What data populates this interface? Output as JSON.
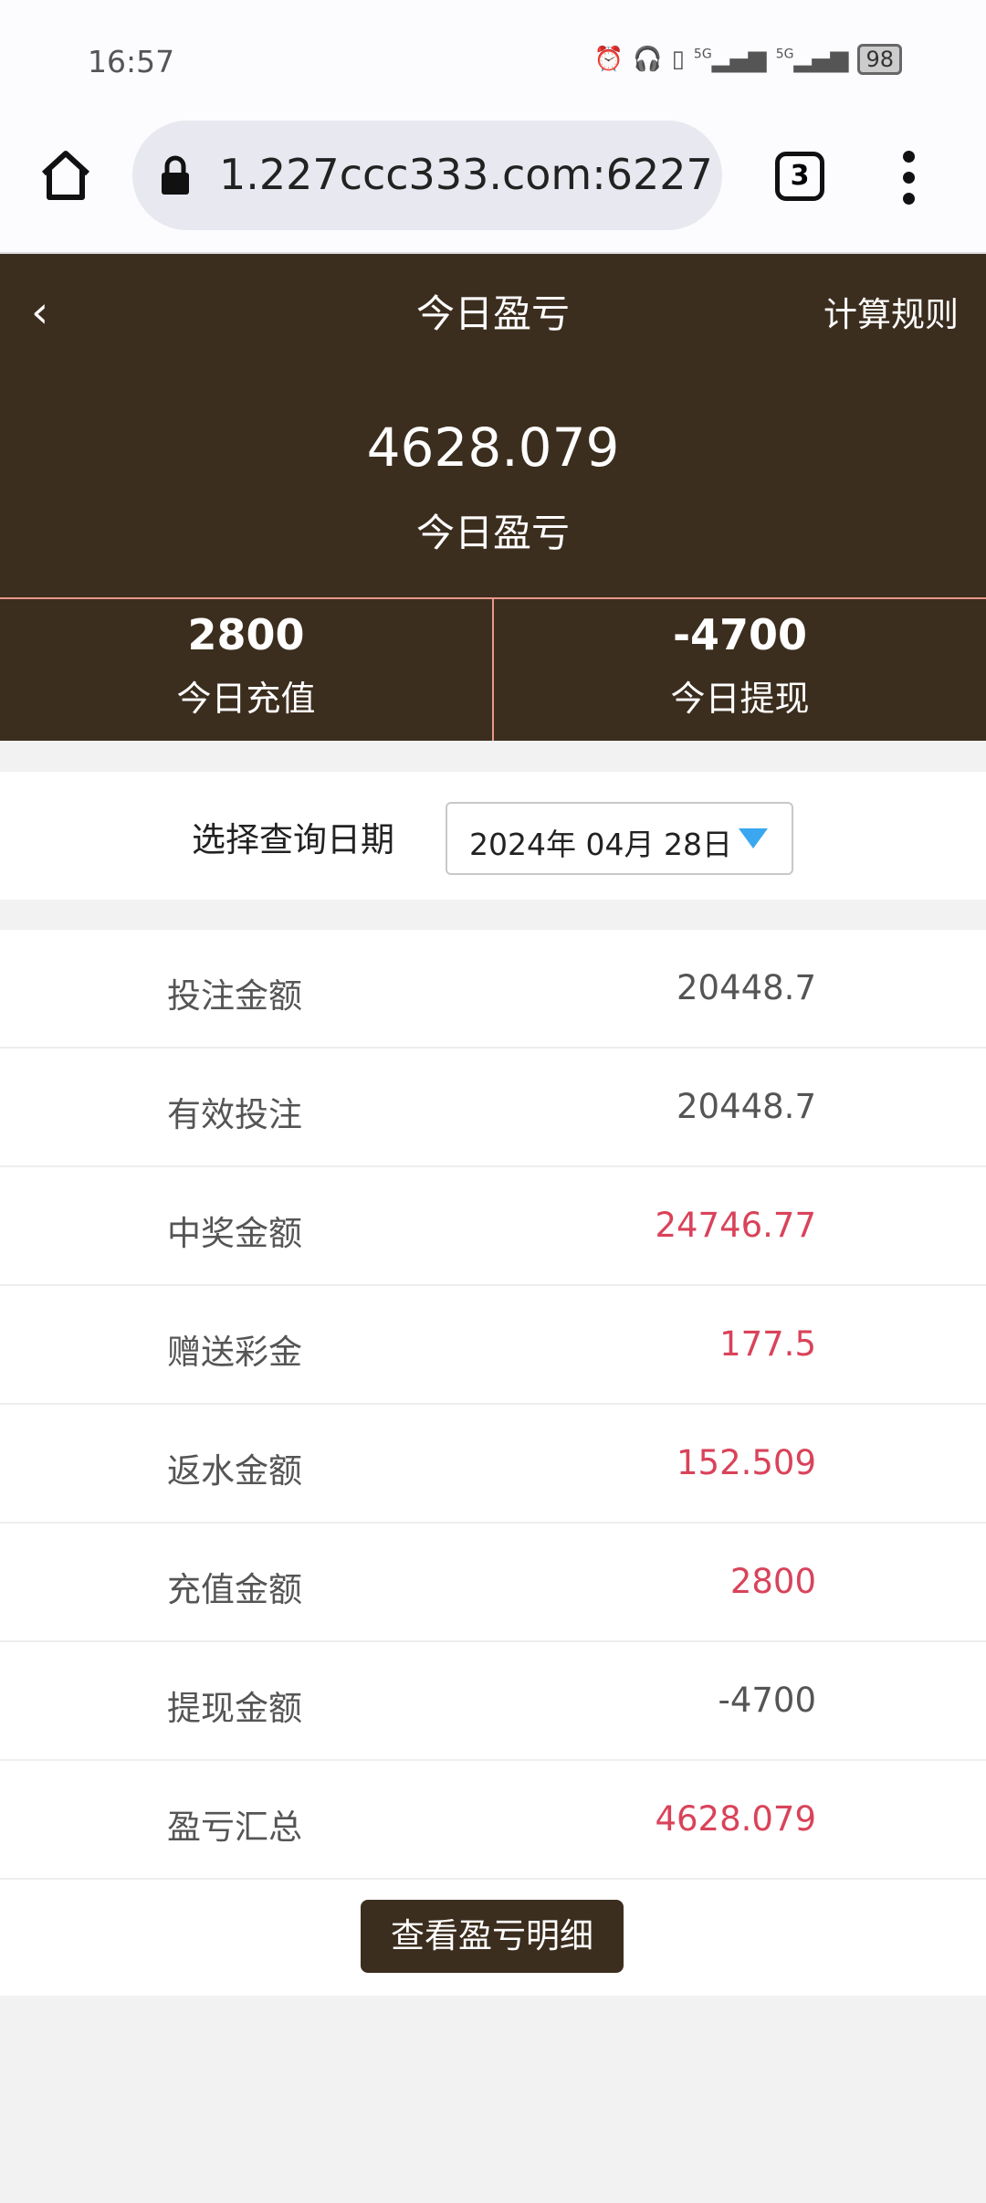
{
  "status_bar": {
    "time": "16:57",
    "battery": "98",
    "signal1": "5G",
    "signal2": "5G"
  },
  "browser": {
    "url": "1.227ccc333.com:6227",
    "tab_count": "3"
  },
  "header": {
    "back": "‹",
    "title": "今日盈亏",
    "rules": "计算规则",
    "profit_value": "4628.079",
    "profit_label": "今日盈亏"
  },
  "stats": [
    {
      "value": "2800",
      "label": "今日充值"
    },
    {
      "value": "-4700",
      "label": "今日提现"
    }
  ],
  "date_filter": {
    "label": "选择查询日期",
    "value": "2024年 04月 28日"
  },
  "rows": [
    {
      "label": "投注金额",
      "value": "20448.7",
      "highlight": false
    },
    {
      "label": "有效投注",
      "value": "20448.7",
      "highlight": false
    },
    {
      "label": "中奖金额",
      "value": "24746.77",
      "highlight": true
    },
    {
      "label": "赠送彩金",
      "value": "177.5",
      "highlight": true
    },
    {
      "label": "返水金额",
      "value": "152.509",
      "highlight": true
    },
    {
      "label": "充值金额",
      "value": "2800",
      "highlight": true
    },
    {
      "label": "提现金额",
      "value": "-4700",
      "highlight": false
    },
    {
      "label": "盈亏汇总",
      "value": "4628.079",
      "highlight": true
    }
  ],
  "detail_button": "查看盈亏明细",
  "colors": {
    "header_bg": "#3c2e1f",
    "highlight": "#d9435a",
    "dropdown_arrow": "#3aa7f0",
    "divider": "#e9978a"
  }
}
